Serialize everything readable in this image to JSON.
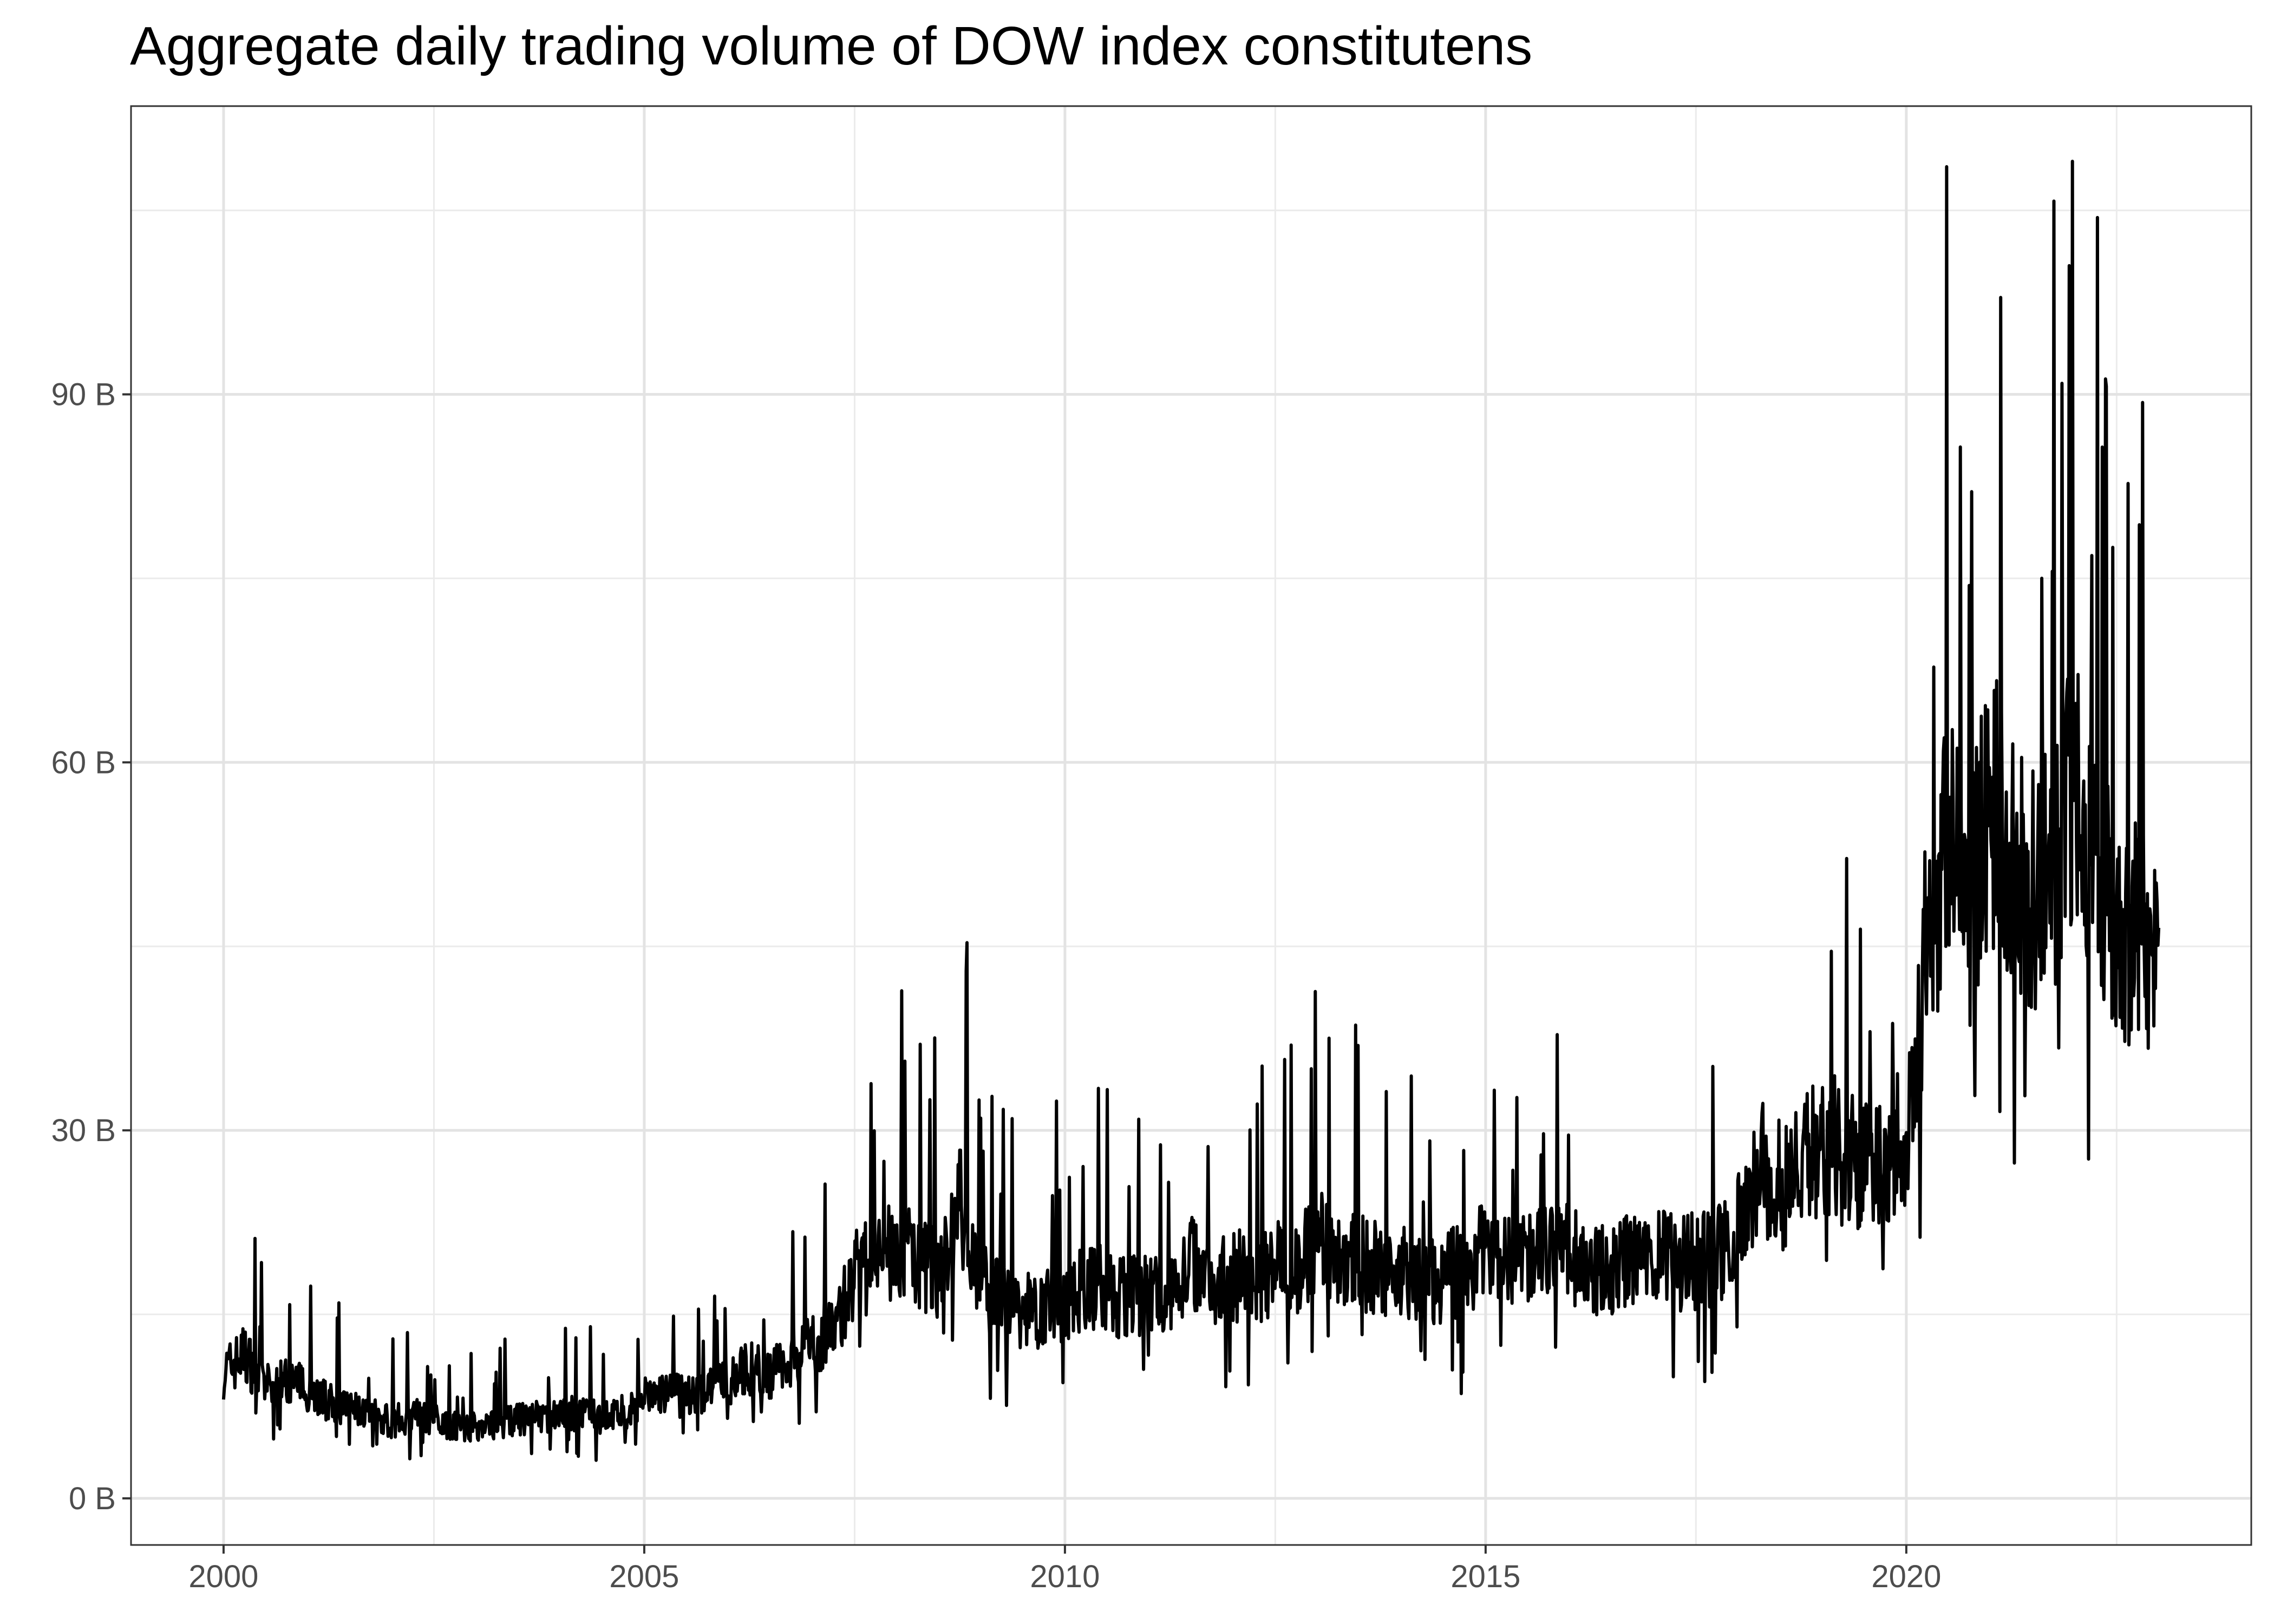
{
  "chart_data": {
    "type": "line",
    "title": "Aggregate daily trading volume of DOW index constitutens",
    "xlabel": "",
    "ylabel": "",
    "xlim": [
      1998.9,
      2024.1
    ],
    "ylim": [
      -3.8,
      113.5
    ],
    "x_ticks": [
      2000,
      2005,
      2010,
      2015,
      2020
    ],
    "x_tick_labels": [
      "2000",
      "2005",
      "2010",
      "2015",
      "2020"
    ],
    "y_ticks": [
      0,
      30,
      60,
      90
    ],
    "y_tick_labels": [
      "0 B",
      "30 B",
      "60 B",
      "90 B"
    ],
    "grid": "major-and-minor",
    "legend": "none",
    "series": [
      {
        "color": "#000000",
        "x": [
          2000.0,
          2000.25,
          2000.5,
          2000.75,
          2001.0,
          2001.25,
          2001.5,
          2001.75,
          2002.0,
          2002.25,
          2002.5,
          2002.75,
          2003.0,
          2003.25,
          2003.5,
          2003.75,
          2004.0,
          2004.25,
          2004.5,
          2004.75,
          2005.0,
          2005.25,
          2005.5,
          2005.75,
          2006.0,
          2006.25,
          2006.5,
          2006.75,
          2007.0,
          2007.25,
          2007.5,
          2007.75,
          2008.0,
          2008.25,
          2008.5,
          2008.75,
          2009.0,
          2009.25,
          2009.5,
          2009.75,
          2010.0,
          2010.25,
          2010.5,
          2010.75,
          2011.0,
          2011.25,
          2011.5,
          2011.75,
          2012.0,
          2012.25,
          2012.5,
          2012.75,
          2013.0,
          2013.25,
          2013.5,
          2013.75,
          2014.0,
          2014.25,
          2014.5,
          2014.75,
          2015.0,
          2015.25,
          2015.5,
          2015.75,
          2016.0,
          2016.25,
          2016.5,
          2016.75,
          2017.0,
          2017.25,
          2017.5,
          2017.75,
          2018.0,
          2018.25,
          2018.5,
          2018.75,
          2019.0,
          2019.25,
          2019.5,
          2019.75,
          2020.0,
          2020.25,
          2020.5,
          2020.75,
          2021.0,
          2021.25,
          2021.5,
          2021.75,
          2022.0,
          2022.25,
          2022.5,
          2022.75,
          2023.0
        ],
        "y": [
          10.2,
          11.8,
          9.0,
          9.6,
          9.0,
          7.8,
          7.4,
          6.8,
          6.2,
          6.8,
          6.4,
          6.0,
          5.8,
          6.2,
          6.4,
          6.6,
          7.0,
          6.8,
          6.6,
          7.0,
          8.2,
          8.6,
          8.2,
          8.8,
          9.6,
          10.6,
          10.2,
          11.4,
          12.4,
          13.8,
          18.0,
          19.2,
          20.4,
          19.6,
          18.4,
          24.0,
          17.4,
          16.0,
          15.2,
          15.6,
          16.0,
          17.6,
          16.8,
          16.2,
          17.0,
          16.4,
          19.4,
          17.8,
          18.2,
          18.0,
          18.6,
          19.0,
          21.0,
          19.6,
          19.2,
          18.6,
          18.4,
          17.6,
          17.8,
          19.0,
          20.2,
          19.4,
          19.8,
          20.8,
          19.8,
          18.6,
          18.8,
          19.4,
          19.6,
          19.2,
          19.4,
          19.8,
          22.2,
          27.0,
          25.4,
          27.0,
          29.6,
          27.8,
          27.6,
          28.4,
          29.0,
          46.0,
          54.0,
          48.0,
          57.0,
          51.0,
          49.0,
          51.0,
          60.0,
          53.0,
          47.0,
          46.0,
          45.0
        ]
      }
    ]
  }
}
